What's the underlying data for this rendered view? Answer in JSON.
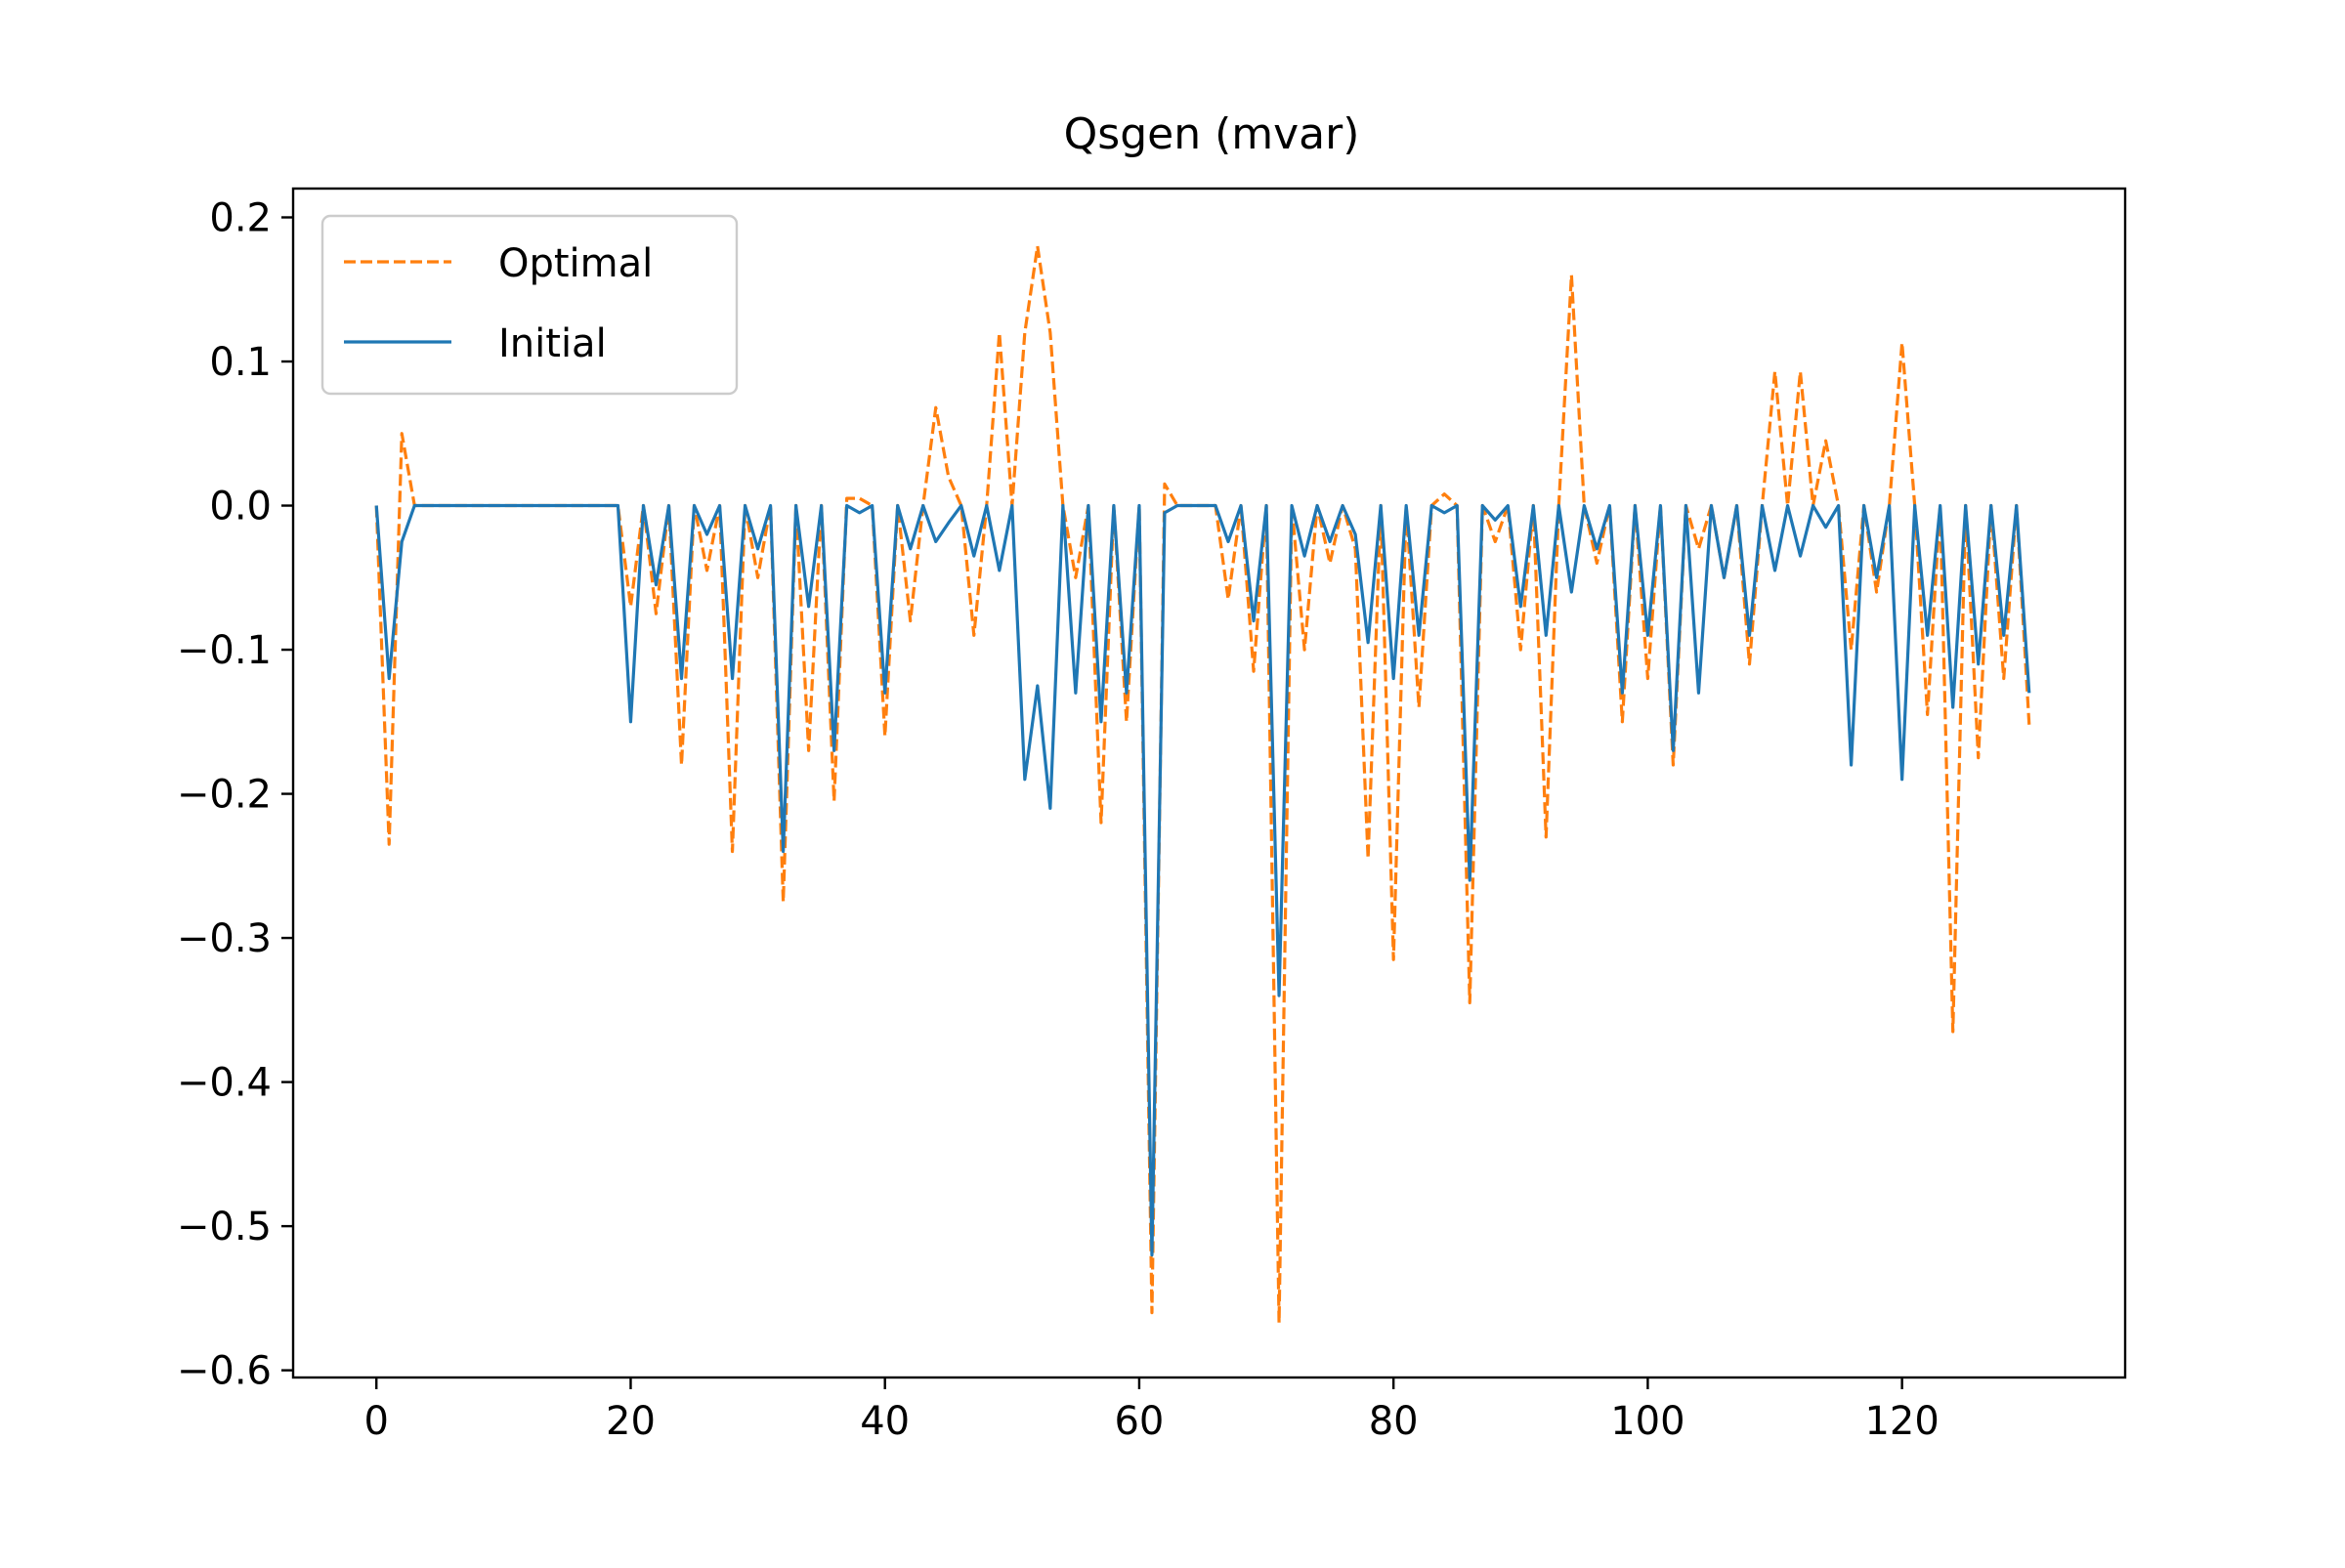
{
  "chart_data": {
    "type": "line",
    "title": "Qsgen (mvar)",
    "xlabel": "",
    "ylabel": "",
    "xlim": [
      -6.55,
      137.55
    ],
    "ylim": [
      -0.605,
      0.22
    ],
    "x_ticks": [
      0,
      20,
      40,
      60,
      80,
      100,
      120
    ],
    "x_tick_labels": [
      "0",
      "20",
      "40",
      "60",
      "80",
      "100",
      "120"
    ],
    "y_ticks": [
      0.2,
      0.1,
      0.0,
      -0.1,
      -0.2,
      -0.3,
      -0.4,
      -0.5,
      -0.6
    ],
    "y_tick_labels": [
      "0.2",
      "0.1",
      "0.0",
      "−0.1",
      "−0.2",
      "−0.3",
      "−0.4",
      "−0.5",
      "−0.6"
    ],
    "grid": false,
    "legend_position": "upper-left",
    "series": [
      {
        "name": "Optimal",
        "color": "#ff7f0e",
        "line_style": "dashed",
        "x": [
          0,
          1,
          2,
          3,
          4,
          5,
          6,
          7,
          8,
          9,
          10,
          11,
          12,
          13,
          14,
          15,
          16,
          17,
          18,
          19,
          20,
          21,
          22,
          23,
          24,
          25,
          26,
          27,
          28,
          29,
          30,
          31,
          32,
          33,
          34,
          35,
          36,
          37,
          38,
          39,
          40,
          41,
          42,
          43,
          44,
          45,
          46,
          47,
          48,
          49,
          50,
          51,
          52,
          53,
          54,
          55,
          56,
          57,
          58,
          59,
          60,
          61,
          62,
          63,
          64,
          65,
          66,
          67,
          68,
          69,
          70,
          71,
          72,
          73,
          74,
          75,
          76,
          77,
          78,
          79,
          80,
          81,
          82,
          83,
          84,
          85,
          86,
          87,
          88,
          89,
          90,
          91,
          92,
          93,
          94,
          95,
          96,
          97,
          98,
          99,
          100,
          101,
          102,
          103,
          104,
          105,
          106,
          107,
          108,
          109,
          110,
          111,
          112,
          113,
          114,
          115,
          116,
          117,
          118,
          119,
          120,
          121,
          122,
          123,
          124,
          125,
          126,
          127,
          128,
          129,
          130
        ],
        "y": [
          0.0,
          -0.235,
          0.05,
          0.0,
          0.0,
          0.0,
          0.0,
          0.0,
          0.0,
          0.0,
          0.0,
          0.0,
          0.0,
          0.0,
          0.0,
          0.0,
          0.0,
          0.0,
          0.0,
          0.0,
          -0.07,
          0.0,
          -0.075,
          0.0,
          -0.18,
          0.0,
          -0.045,
          0.0,
          -0.24,
          0.0,
          -0.05,
          0.0,
          -0.275,
          0.0,
          -0.17,
          0.0,
          -0.205,
          0.005,
          0.005,
          0.0,
          -0.16,
          0.0,
          -0.08,
          0.0,
          0.068,
          0.02,
          0.0,
          -0.09,
          0.0,
          0.12,
          0.0,
          0.12,
          0.18,
          0.12,
          0.0,
          -0.05,
          0.0,
          -0.22,
          0.0,
          -0.15,
          0.0,
          -0.56,
          0.015,
          0.0,
          0.0,
          0.0,
          0.0,
          -0.065,
          0.0,
          -0.115,
          0.0,
          -0.567,
          0.0,
          -0.1,
          0.0,
          -0.04,
          0.0,
          -0.03,
          -0.245,
          0.0,
          -0.315,
          0.0,
          -0.14,
          0.0,
          0.008,
          0.0,
          -0.345,
          0.0,
          -0.025,
          0.0,
          -0.1,
          0.0,
          -0.23,
          0.0,
          0.16,
          0.0,
          -0.04,
          0.0,
          -0.15,
          0.0,
          -0.12,
          0.0,
          -0.18,
          0.0,
          -0.03,
          0.0,
          -0.05,
          0.0,
          -0.11,
          0.0,
          0.093,
          0.0,
          0.093,
          0.0,
          0.045,
          0.0,
          -0.1,
          0.0,
          -0.06,
          0.0,
          0.113,
          0.0,
          -0.145,
          0.0,
          -0.365,
          0.0,
          -0.175,
          0.0,
          -0.12,
          0.0,
          -0.152
        ]
      },
      {
        "name": "Initial",
        "color": "#1f77b4",
        "line_style": "solid",
        "x": [
          0,
          1,
          2,
          3,
          4,
          5,
          6,
          7,
          8,
          9,
          10,
          11,
          12,
          13,
          14,
          15,
          16,
          17,
          18,
          19,
          20,
          21,
          22,
          23,
          24,
          25,
          26,
          27,
          28,
          29,
          30,
          31,
          32,
          33,
          34,
          35,
          36,
          37,
          38,
          39,
          40,
          41,
          42,
          43,
          44,
          45,
          46,
          47,
          48,
          49,
          50,
          51,
          52,
          53,
          54,
          55,
          56,
          57,
          58,
          59,
          60,
          61,
          62,
          63,
          64,
          65,
          66,
          67,
          68,
          69,
          70,
          71,
          72,
          73,
          74,
          75,
          76,
          77,
          78,
          79,
          80,
          81,
          82,
          83,
          84,
          85,
          86,
          87,
          88,
          89,
          90,
          91,
          92,
          93,
          94,
          95,
          96,
          97,
          98,
          99,
          100,
          101,
          102,
          103,
          104,
          105,
          106,
          107,
          108,
          109,
          110,
          111,
          112,
          113,
          114,
          115,
          116,
          117,
          118,
          119,
          120,
          121,
          122,
          123,
          124,
          125,
          126,
          127,
          128,
          129,
          130
        ],
        "y": [
          0.0,
          -0.12,
          -0.025,
          0.0,
          0.0,
          0.0,
          0.0,
          0.0,
          0.0,
          0.0,
          0.0,
          0.0,
          0.0,
          0.0,
          0.0,
          0.0,
          0.0,
          0.0,
          0.0,
          0.0,
          -0.15,
          0.0,
          -0.055,
          0.0,
          -0.12,
          0.0,
          -0.02,
          0.0,
          -0.12,
          0.0,
          -0.03,
          0.0,
          -0.24,
          0.0,
          -0.07,
          0.0,
          -0.17,
          0.0,
          -0.005,
          0.0,
          -0.13,
          0.0,
          -0.03,
          0.0,
          -0.025,
          -0.012,
          0.0,
          -0.035,
          0.0,
          -0.045,
          0.0,
          -0.19,
          -0.125,
          -0.21,
          0.0,
          -0.13,
          0.0,
          -0.15,
          0.0,
          -0.13,
          0.0,
          -0.52,
          -0.005,
          0.0,
          0.0,
          0.0,
          0.0,
          -0.025,
          0.0,
          -0.08,
          0.0,
          -0.34,
          0.0,
          -0.035,
          0.0,
          -0.025,
          0.0,
          -0.02,
          -0.095,
          0.0,
          -0.12,
          0.0,
          -0.09,
          0.0,
          -0.005,
          0.0,
          -0.26,
          0.0,
          -0.01,
          0.0,
          -0.07,
          0.0,
          -0.09,
          0.0,
          -0.06,
          0.0,
          -0.03,
          0.0,
          -0.13,
          0.0,
          -0.09,
          0.0,
          -0.17,
          0.0,
          -0.13,
          0.0,
          -0.05,
          0.0,
          -0.09,
          0.0,
          -0.045,
          0.0,
          -0.035,
          0.0,
          -0.015,
          0.0,
          -0.18,
          0.0,
          -0.05,
          0.0,
          -0.19,
          0.0,
          -0.09,
          0.0,
          -0.14,
          0.0,
          -0.11,
          0.0,
          -0.09,
          0.0,
          -0.13
        ]
      }
    ]
  }
}
